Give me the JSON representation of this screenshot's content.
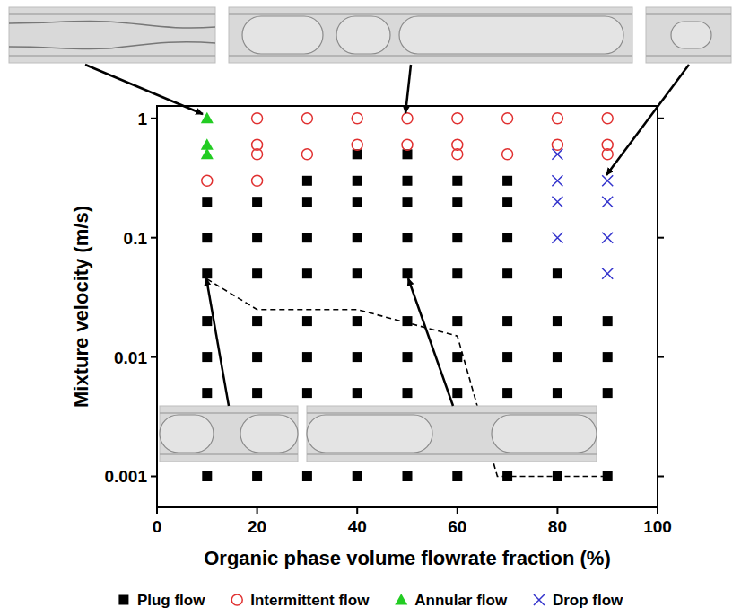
{
  "chart_data": {
    "type": "scatter",
    "x_label": "Organic phase volume flowrate fraction (%)",
    "y_label": "Mixture velocity (m/s)",
    "log": "y",
    "grid": false,
    "legend": "bottom",
    "xlim": [
      0,
      100
    ],
    "xticks": [
      0,
      20,
      40,
      60,
      80,
      100
    ],
    "ylim": [
      0.00055,
      1.27
    ],
    "yticks": [
      0.001,
      0.01,
      0.1,
      1
    ],
    "series": [
      {
        "name": "Plug flow",
        "color": "#000000",
        "marker": "square",
        "x": [
          10,
          10,
          10,
          10,
          10,
          10,
          10,
          20,
          20,
          20,
          20,
          20,
          20,
          20,
          30,
          30,
          30,
          30,
          30,
          30,
          30,
          30,
          40,
          40,
          40,
          40,
          40,
          40,
          40,
          40,
          40,
          50,
          50,
          50,
          50,
          50,
          50,
          50,
          50,
          50,
          60,
          60,
          60,
          60,
          60,
          60,
          60,
          60,
          70,
          70,
          70,
          70,
          70,
          70,
          70,
          70,
          80,
          80,
          80,
          80,
          80,
          90,
          90,
          90,
          90
        ],
        "values": [
          0.2,
          0.1,
          0.05,
          0.02,
          0.01,
          0.005,
          0.001,
          0.2,
          0.1,
          0.05,
          0.02,
          0.01,
          0.005,
          0.001,
          0.3,
          0.2,
          0.1,
          0.05,
          0.02,
          0.01,
          0.005,
          0.001,
          0.5,
          0.3,
          0.2,
          0.1,
          0.05,
          0.02,
          0.01,
          0.005,
          0.001,
          0.5,
          0.3,
          0.2,
          0.1,
          0.05,
          0.02,
          0.01,
          0.005,
          0.001,
          0.3,
          0.2,
          0.1,
          0.05,
          0.02,
          0.01,
          0.005,
          0.001,
          0.3,
          0.2,
          0.1,
          0.05,
          0.02,
          0.01,
          0.005,
          0.001,
          0.05,
          0.02,
          0.01,
          0.005,
          0.001,
          0.02,
          0.01,
          0.005,
          0.001
        ]
      },
      {
        "name": "Intermittent flow",
        "color": "#e03030",
        "marker": "circle",
        "x": [
          10,
          20,
          20,
          20,
          20,
          30,
          30,
          40,
          40,
          50,
          50,
          60,
          60,
          60,
          70,
          70,
          80,
          80,
          90,
          90,
          90
        ],
        "values": [
          0.3,
          1,
          0.6,
          0.5,
          0.3,
          1,
          0.5,
          1,
          0.6,
          1,
          0.6,
          1,
          0.6,
          0.5,
          1,
          0.5,
          1,
          0.6,
          1,
          0.6,
          0.5
        ]
      },
      {
        "name": "Annular flow",
        "color": "#22cc22",
        "marker": "triangle",
        "x": [
          10,
          10,
          10
        ],
        "values": [
          1,
          0.6,
          0.5
        ]
      },
      {
        "name": "Drop flow",
        "color": "#3333cc",
        "marker": "x",
        "x": [
          80,
          80,
          80,
          80,
          90,
          90,
          90,
          90
        ],
        "values": [
          0.5,
          0.3,
          0.2,
          0.1,
          0.3,
          0.2,
          0.1,
          0.05
        ]
      },
      {
        "type": "line",
        "color": "#000000",
        "line_style": "dashed",
        "x": [
          10,
          20,
          40,
          60,
          68,
          90
        ],
        "values": [
          0.045,
          0.025,
          0.025,
          0.015,
          0.001,
          0.001
        ]
      }
    ]
  }
}
